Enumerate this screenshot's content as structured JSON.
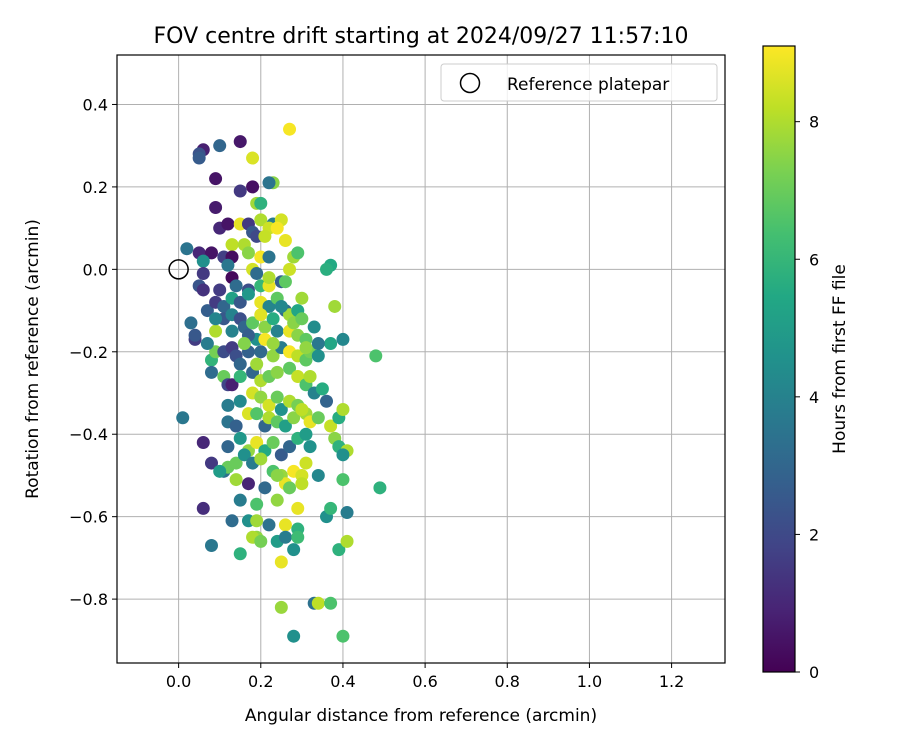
{
  "chart_data": {
    "type": "scatter",
    "title": "FOV centre drift starting at 2024/09/27 11:57:10",
    "xlabel": "Angular distance from reference (arcmin)",
    "ylabel": "Rotation from reference (arcmin)",
    "xlim": [
      -0.15,
      1.33
    ],
    "ylim": [
      -0.955,
      0.52
    ],
    "xticks": [
      0.0,
      0.2,
      0.4,
      0.6,
      0.8,
      1.0,
      1.2
    ],
    "xtick_labels": [
      "0.0",
      "0.2",
      "0.4",
      "0.6",
      "0.8",
      "1.0",
      "1.2"
    ],
    "yticks": [
      -0.8,
      -0.6,
      -0.4,
      -0.2,
      0.0,
      0.2,
      0.4
    ],
    "ytick_labels": [
      "−0.8",
      "−0.6",
      "−0.4",
      "−0.2",
      "0.0",
      "0.2",
      "0.4"
    ],
    "grid": true,
    "legend": {
      "placement": "upper-right",
      "entries": [
        "Reference platepar"
      ]
    },
    "reference_point": {
      "label": "Reference platepar",
      "x": 0.0,
      "y": 0.0
    },
    "colorbar": {
      "label": "Hours from first FF file",
      "colormap": "viridis",
      "range": [
        0,
        9.1
      ],
      "ticks": [
        0,
        2,
        4,
        6,
        8
      ],
      "tick_labels": [
        "0",
        "2",
        "4",
        "6",
        "8"
      ]
    },
    "series": [
      {
        "color_value": "hours",
        "points": [
          [
            0.27,
            0.34,
            9.0
          ],
          [
            0.15,
            0.31,
            0.6
          ],
          [
            0.06,
            0.29,
            0.8
          ],
          [
            0.1,
            0.3,
            3.0
          ],
          [
            0.05,
            0.28,
            2.3
          ],
          [
            0.05,
            0.27,
            2.6
          ],
          [
            0.18,
            0.27,
            8.6
          ],
          [
            0.09,
            0.22,
            0.5
          ],
          [
            0.23,
            0.21,
            7.5
          ],
          [
            0.22,
            0.21,
            3.5
          ],
          [
            0.15,
            0.19,
            1.5
          ],
          [
            0.18,
            0.2,
            0.4
          ],
          [
            0.09,
            0.15,
            0.7
          ],
          [
            0.19,
            0.16,
            7.8
          ],
          [
            0.2,
            0.16,
            5.8
          ],
          [
            0.1,
            0.1,
            1.0
          ],
          [
            0.12,
            0.11,
            0.5
          ],
          [
            0.15,
            0.11,
            8.8
          ],
          [
            0.17,
            0.11,
            1.5
          ],
          [
            0.2,
            0.12,
            8.0
          ],
          [
            0.23,
            0.11,
            3.8
          ],
          [
            0.25,
            0.12,
            8.5
          ],
          [
            0.22,
            0.1,
            8.4
          ],
          [
            0.24,
            0.1,
            9.0
          ],
          [
            0.18,
            0.09,
            2.5
          ],
          [
            0.19,
            0.08,
            2.0
          ],
          [
            0.13,
            0.06,
            8.2
          ],
          [
            0.16,
            0.06,
            8.0
          ],
          [
            0.21,
            0.08,
            8.3
          ],
          [
            0.26,
            0.07,
            8.8
          ],
          [
            0.05,
            0.04,
            1.0
          ],
          [
            0.08,
            0.04,
            0.5
          ],
          [
            0.02,
            0.05,
            3.5
          ],
          [
            0.11,
            0.03,
            1.7
          ],
          [
            0.13,
            0.03,
            0.3
          ],
          [
            0.17,
            0.04,
            7.5
          ],
          [
            0.2,
            0.03,
            9.0
          ],
          [
            0.22,
            0.03,
            3.5
          ],
          [
            0.28,
            0.03,
            7.8
          ],
          [
            0.29,
            0.04,
            6.5
          ],
          [
            0.37,
            0.01,
            5.5
          ],
          [
            0.36,
            0.0,
            5.7
          ],
          [
            0.06,
            0.02,
            4.5
          ],
          [
            0.12,
            0.01,
            3.6
          ],
          [
            0.18,
            0.0,
            8.5
          ],
          [
            0.19,
            -0.01,
            3.2
          ],
          [
            0.27,
            0.0,
            8.4
          ],
          [
            0.06,
            -0.01,
            1.5
          ],
          [
            0.13,
            -0.02,
            0.2
          ],
          [
            0.05,
            -0.04,
            2.4
          ],
          [
            0.06,
            -0.05,
            1.3
          ],
          [
            0.1,
            -0.05,
            1.6
          ],
          [
            0.14,
            -0.04,
            3.2
          ],
          [
            0.17,
            -0.05,
            2.2
          ],
          [
            0.2,
            -0.04,
            6.0
          ],
          [
            0.22,
            -0.04,
            8.8
          ],
          [
            0.25,
            -0.03,
            2.8
          ],
          [
            0.26,
            -0.03,
            6.8
          ],
          [
            0.3,
            -0.07,
            7.8
          ],
          [
            0.07,
            -0.1,
            2.7
          ],
          [
            0.09,
            -0.08,
            1.6
          ],
          [
            0.11,
            -0.09,
            3.0
          ],
          [
            0.13,
            -0.07,
            5.2
          ],
          [
            0.15,
            -0.08,
            2.5
          ],
          [
            0.17,
            -0.06,
            4.8
          ],
          [
            0.2,
            -0.08,
            8.8
          ],
          [
            0.22,
            -0.09,
            4.1
          ],
          [
            0.24,
            -0.07,
            6.8
          ],
          [
            0.26,
            -0.1,
            3.2
          ],
          [
            0.27,
            -0.11,
            7.8
          ],
          [
            0.29,
            -0.1,
            5.4
          ],
          [
            0.38,
            -0.09,
            7.8
          ],
          [
            0.03,
            -0.13,
            3.3
          ],
          [
            0.04,
            -0.17,
            1.6
          ],
          [
            0.04,
            -0.16,
            2.5
          ],
          [
            0.09,
            -0.15,
            8.0
          ],
          [
            0.11,
            -0.12,
            2.5
          ],
          [
            0.13,
            -0.11,
            4.0
          ],
          [
            0.15,
            -0.12,
            2.2
          ],
          [
            0.16,
            -0.14,
            3.0
          ],
          [
            0.18,
            -0.13,
            6.8
          ],
          [
            0.2,
            -0.11,
            8.7
          ],
          [
            0.21,
            -0.14,
            7.5
          ],
          [
            0.23,
            -0.12,
            5.6
          ],
          [
            0.24,
            -0.15,
            4.0
          ],
          [
            0.27,
            -0.15,
            8.8
          ],
          [
            0.28,
            -0.13,
            7.5
          ],
          [
            0.3,
            -0.12,
            7.0
          ],
          [
            0.33,
            -0.14,
            4.4
          ],
          [
            0.08,
            -0.22,
            5.9
          ],
          [
            0.09,
            -0.2,
            7.2
          ],
          [
            0.11,
            -0.2,
            2.1
          ],
          [
            0.13,
            -0.19,
            1.6
          ],
          [
            0.14,
            -0.21,
            2.2
          ],
          [
            0.15,
            -0.23,
            3.0
          ],
          [
            0.17,
            -0.2,
            2.8
          ],
          [
            0.19,
            -0.17,
            4.5
          ],
          [
            0.2,
            -0.2,
            3.1
          ],
          [
            0.21,
            -0.17,
            9.0
          ],
          [
            0.23,
            -0.21,
            7.6
          ],
          [
            0.25,
            -0.19,
            3.8
          ],
          [
            0.27,
            -0.2,
            9.0
          ],
          [
            0.29,
            -0.21,
            8.2
          ],
          [
            0.31,
            -0.22,
            6.8
          ],
          [
            0.32,
            -0.2,
            7.2
          ],
          [
            0.34,
            -0.21,
            4.5
          ],
          [
            0.37,
            -0.18,
            5.4
          ],
          [
            0.4,
            -0.17,
            4.2
          ],
          [
            0.48,
            -0.21,
            6.5
          ],
          [
            0.08,
            -0.25,
            3.2
          ],
          [
            0.11,
            -0.26,
            7.0
          ],
          [
            0.12,
            -0.28,
            1.9
          ],
          [
            0.13,
            -0.28,
            0.8
          ],
          [
            0.15,
            -0.26,
            6.0
          ],
          [
            0.18,
            -0.25,
            3.0
          ],
          [
            0.19,
            -0.23,
            7.8
          ],
          [
            0.2,
            -0.27,
            8.0
          ],
          [
            0.22,
            -0.26,
            7.0
          ],
          [
            0.24,
            -0.25,
            7.5
          ],
          [
            0.27,
            -0.24,
            6.8
          ],
          [
            0.29,
            -0.26,
            8.3
          ],
          [
            0.31,
            -0.28,
            6.5
          ],
          [
            0.32,
            -0.26,
            8.0
          ],
          [
            0.12,
            -0.33,
            3.8
          ],
          [
            0.15,
            -0.32,
            4.3
          ],
          [
            0.18,
            -0.3,
            8.5
          ],
          [
            0.2,
            -0.31,
            7.6
          ],
          [
            0.22,
            -0.33,
            8.5
          ],
          [
            0.24,
            -0.31,
            7.0
          ],
          [
            0.25,
            -0.34,
            4.6
          ],
          [
            0.27,
            -0.32,
            8.0
          ],
          [
            0.29,
            -0.33,
            7.2
          ],
          [
            0.31,
            -0.35,
            7.8
          ],
          [
            0.33,
            -0.3,
            4.0
          ],
          [
            0.35,
            -0.29,
            5.6
          ],
          [
            0.36,
            -0.32,
            2.9
          ],
          [
            0.12,
            -0.37,
            3.5
          ],
          [
            0.14,
            -0.38,
            2.8
          ],
          [
            0.17,
            -0.35,
            8.6
          ],
          [
            0.19,
            -0.35,
            6.6
          ],
          [
            0.21,
            -0.38,
            3.0
          ],
          [
            0.22,
            -0.36,
            8.0
          ],
          [
            0.24,
            -0.37,
            6.8
          ],
          [
            0.26,
            -0.38,
            5.1
          ],
          [
            0.28,
            -0.36,
            7.5
          ],
          [
            0.3,
            -0.34,
            8.2
          ],
          [
            0.32,
            -0.37,
            8.8
          ],
          [
            0.34,
            -0.36,
            7.0
          ],
          [
            0.37,
            -0.38,
            8.3
          ],
          [
            0.39,
            -0.36,
            5.6
          ],
          [
            0.4,
            -0.34,
            8.0
          ],
          [
            0.01,
            -0.36,
            3.6
          ],
          [
            0.06,
            -0.42,
            1.0
          ],
          [
            0.12,
            -0.43,
            3.0
          ],
          [
            0.15,
            -0.41,
            4.8
          ],
          [
            0.17,
            -0.44,
            7.6
          ],
          [
            0.19,
            -0.42,
            8.8
          ],
          [
            0.21,
            -0.44,
            5.5
          ],
          [
            0.23,
            -0.42,
            7.0
          ],
          [
            0.25,
            -0.45,
            2.6
          ],
          [
            0.27,
            -0.43,
            3.0
          ],
          [
            0.29,
            -0.41,
            5.8
          ],
          [
            0.31,
            -0.4,
            5.0
          ],
          [
            0.38,
            -0.41,
            7.5
          ],
          [
            0.39,
            -0.43,
            5.8
          ],
          [
            0.41,
            -0.44,
            8.0
          ],
          [
            0.08,
            -0.47,
            1.5
          ],
          [
            0.11,
            -0.49,
            3.4
          ],
          [
            0.12,
            -0.48,
            7.0
          ],
          [
            0.14,
            -0.47,
            7.0
          ],
          [
            0.16,
            -0.45,
            4.5
          ],
          [
            0.18,
            -0.47,
            3.8
          ],
          [
            0.2,
            -0.46,
            7.8
          ],
          [
            0.23,
            -0.49,
            6.5
          ],
          [
            0.25,
            -0.5,
            7.7
          ],
          [
            0.26,
            -0.52,
            8.8
          ],
          [
            0.28,
            -0.49,
            9.0
          ],
          [
            0.3,
            -0.5,
            8.5
          ],
          [
            0.31,
            -0.47,
            8.4
          ],
          [
            0.34,
            -0.5,
            4.2
          ],
          [
            0.4,
            -0.45,
            4.5
          ],
          [
            0.1,
            -0.49,
            5.0
          ],
          [
            0.14,
            -0.51,
            7.8
          ],
          [
            0.17,
            -0.52,
            0.9
          ],
          [
            0.21,
            -0.53,
            3.1
          ],
          [
            0.24,
            -0.5,
            7.5
          ],
          [
            0.27,
            -0.53,
            7.0
          ],
          [
            0.3,
            -0.52,
            8.2
          ],
          [
            0.4,
            -0.51,
            6.5
          ],
          [
            0.49,
            -0.53,
            5.8
          ],
          [
            0.15,
            -0.56,
            3.8
          ],
          [
            0.19,
            -0.57,
            6.5
          ],
          [
            0.24,
            -0.56,
            7.6
          ],
          [
            0.29,
            -0.58,
            8.8
          ],
          [
            0.36,
            -0.6,
            4.5
          ],
          [
            0.37,
            -0.58,
            6.0
          ],
          [
            0.41,
            -0.59,
            3.8
          ],
          [
            0.06,
            -0.58,
            1.2
          ],
          [
            0.13,
            -0.61,
            3.2
          ],
          [
            0.17,
            -0.61,
            4.5
          ],
          [
            0.19,
            -0.61,
            7.8
          ],
          [
            0.22,
            -0.62,
            3.4
          ],
          [
            0.26,
            -0.62,
            8.8
          ],
          [
            0.29,
            -0.63,
            5.8
          ],
          [
            0.19,
            -0.65,
            7.6
          ],
          [
            0.18,
            -0.65,
            8.0
          ],
          [
            0.2,
            -0.66,
            7.2
          ],
          [
            0.24,
            -0.66,
            5.0
          ],
          [
            0.26,
            -0.65,
            3.8
          ],
          [
            0.29,
            -0.65,
            6.2
          ],
          [
            0.39,
            -0.68,
            5.8
          ],
          [
            0.41,
            -0.66,
            8.0
          ],
          [
            0.08,
            -0.67,
            3.6
          ],
          [
            0.15,
            -0.69,
            5.8
          ],
          [
            0.28,
            -0.68,
            4.5
          ],
          [
            0.25,
            -0.71,
            8.8
          ],
          [
            0.33,
            -0.81,
            3.4
          ],
          [
            0.34,
            -0.81,
            8.2
          ],
          [
            0.37,
            -0.81,
            6.5
          ],
          [
            0.25,
            -0.82,
            7.7
          ],
          [
            0.28,
            -0.89,
            4.5
          ],
          [
            0.4,
            -0.89,
            6.5
          ],
          [
            0.29,
            -0.16,
            7.5
          ],
          [
            0.31,
            -0.17,
            6.8
          ],
          [
            0.31,
            -0.19,
            7.6
          ],
          [
            0.34,
            -0.18,
            3.6
          ],
          [
            0.07,
            -0.18,
            3.8
          ],
          [
            0.23,
            -0.18,
            7.7
          ],
          [
            0.22,
            -0.02,
            8.0
          ],
          [
            0.13,
            -0.15,
            4.0
          ],
          [
            0.17,
            -0.16,
            2.7
          ],
          [
            0.25,
            -0.09,
            4.2
          ],
          [
            0.09,
            -0.12,
            4.1
          ],
          [
            0.32,
            -0.43,
            4.6
          ],
          [
            0.16,
            -0.18,
            7.4
          ]
        ]
      }
    ]
  }
}
